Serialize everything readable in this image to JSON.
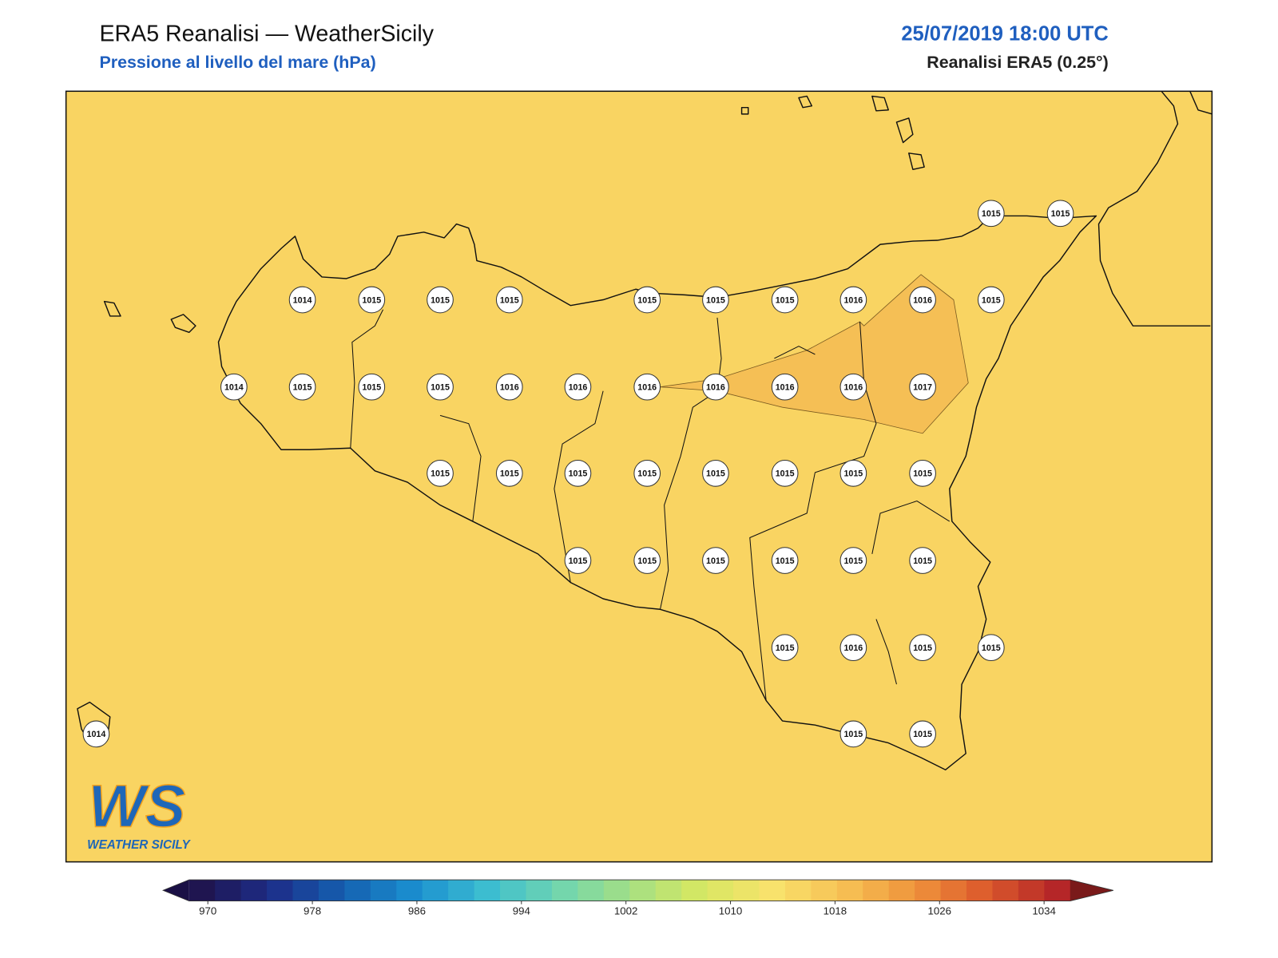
{
  "header": {
    "title": "ERA5 Reanalisi — WeatherSicily",
    "subtitle": "Pressione al livello del mare (hPa)",
    "datetime": "25/07/2019 18:00 UTC",
    "source": "Reanalisi ERA5 (0.25°)"
  },
  "stations": [
    1015,
    1015,
    1014,
    1015,
    1015,
    1015,
    1015,
    1015,
    1015,
    1016,
    1016,
    1015,
    1014,
    1015,
    1015,
    1015,
    1016,
    1016,
    1016,
    1016,
    1016,
    1016,
    1017,
    1015,
    1015,
    1015,
    1015,
    1015,
    1015,
    1015,
    1015,
    1015,
    1015,
    1015,
    1015,
    1015,
    1015,
    1015,
    1016,
    1015,
    1015,
    1014,
    1015,
    1015
  ],
  "logo": {
    "mark": "WS",
    "name": "WEATHER SICILY"
  },
  "colorbar": {
    "ticks": [
      970,
      978,
      986,
      994,
      1002,
      1010,
      1018,
      1026,
      1034
    ]
  }
}
